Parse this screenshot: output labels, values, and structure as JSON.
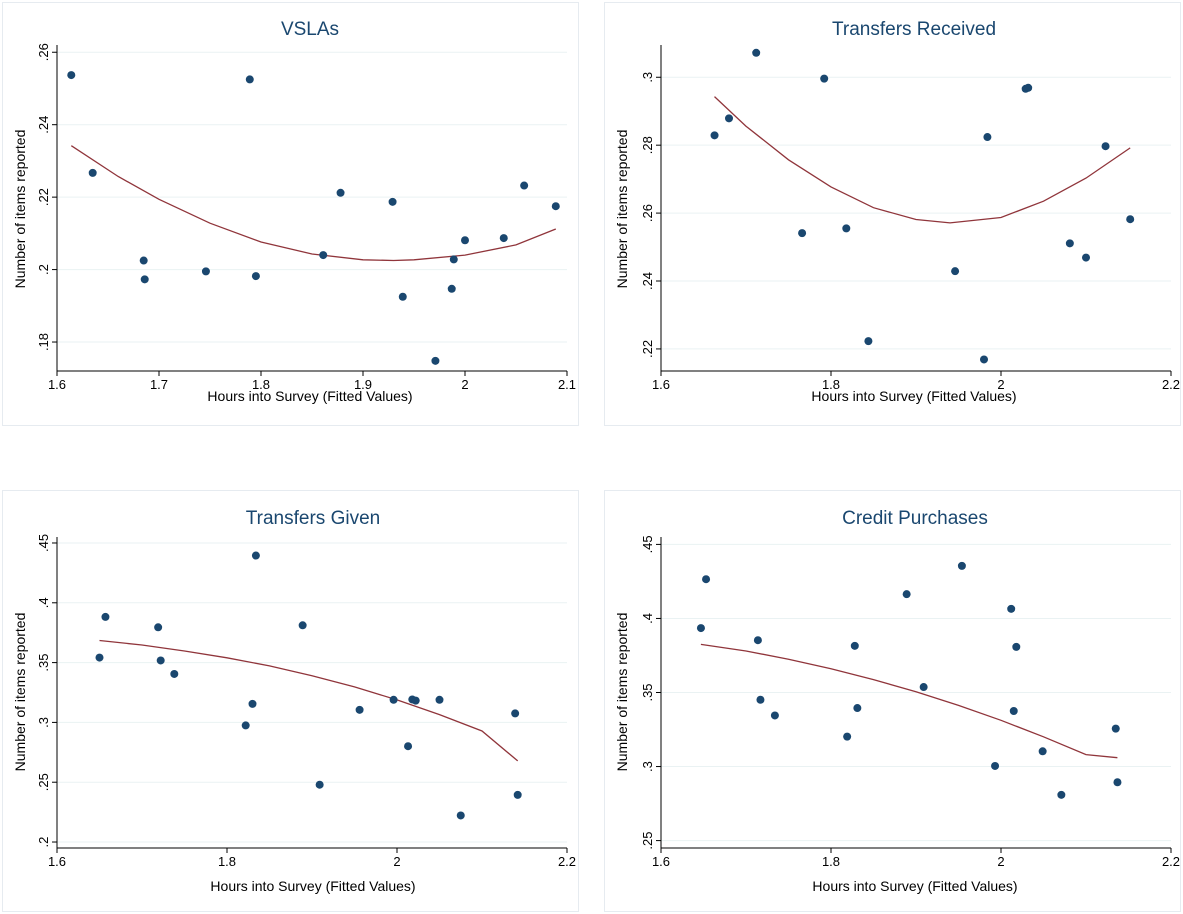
{
  "chart_data": [
    {
      "type": "scatter",
      "title": "VSLAs",
      "xlabel": "Hours into Survey (Fitted Values)",
      "ylabel": "Number of items reported",
      "xlim": [
        1.6,
        2.1
      ],
      "ylim": [
        0.172,
        0.262
      ],
      "xticks": [
        1.6,
        1.7,
        1.8,
        1.9,
        2,
        2.1
      ],
      "xtick_labels": [
        "1.6",
        "1.7",
        "1.8",
        "1.9",
        "2",
        "2.1"
      ],
      "yticks": [
        0.18,
        0.2,
        0.22,
        0.24,
        0.26
      ],
      "ytick_labels": [
        ".18",
        ".2",
        ".22",
        ".24",
        ".26"
      ],
      "grid": true,
      "colors": {
        "points": "#1a476f",
        "fit": "#90353b"
      },
      "series": [
        {
          "type": "scatter",
          "x": [
            1.614,
            1.635,
            1.685,
            1.686,
            1.746,
            1.789,
            1.795,
            1.861,
            1.878,
            1.929,
            1.939,
            1.971,
            1.987,
            1.989,
            2.0,
            2.038,
            2.058,
            2.089
          ],
          "y": [
            0.2537,
            0.2267,
            0.2025,
            0.1973,
            0.1995,
            0.2525,
            0.1982,
            0.204,
            0.2212,
            0.2187,
            0.1925,
            0.1748,
            0.1947,
            0.2028,
            0.2081,
            0.2087,
            0.2232,
            0.2175
          ]
        },
        {
          "type": "line",
          "x": [
            1.614,
            1.66,
            1.7,
            1.75,
            1.8,
            1.85,
            1.9,
            1.93,
            1.95,
            2.0,
            2.05,
            2.089
          ],
          "y": [
            0.2342,
            0.2257,
            0.2194,
            0.2128,
            0.2076,
            0.2043,
            0.2027,
            0.2025,
            0.2027,
            0.204,
            0.2068,
            0.2112
          ]
        }
      ]
    },
    {
      "type": "scatter",
      "title": "Transfers Received",
      "xlabel": "Hours into Survey (Fitted Values)",
      "ylabel": "Number of items reported",
      "xlim": [
        1.6,
        2.2
      ],
      "ylim": [
        0.2135,
        0.3095
      ],
      "xticks": [
        1.6,
        1.8,
        2,
        2.2
      ],
      "xtick_labels": [
        "1.6",
        "1.8",
        "2",
        "2.2"
      ],
      "yticks": [
        0.22,
        0.24,
        0.26,
        0.28,
        0.3
      ],
      "ytick_labels": [
        ".22",
        ".24",
        ".26",
        ".28",
        ".3"
      ],
      "grid": true,
      "colors": {
        "points": "#1a476f",
        "fit": "#90353b"
      },
      "series": [
        {
          "type": "scatter",
          "x": [
            1.663,
            1.68,
            1.712,
            1.766,
            1.792,
            1.818,
            1.844,
            1.946,
            1.98,
            1.984,
            2.029,
            2.032,
            2.081,
            2.1,
            2.123,
            2.152
          ],
          "y": [
            0.2829,
            0.2879,
            0.3072,
            0.2541,
            0.2996,
            0.2555,
            0.2223,
            0.2429,
            0.2169,
            0.2824,
            0.2966,
            0.2969,
            0.2511,
            0.2469,
            0.2797,
            0.2582
          ]
        },
        {
          "type": "line",
          "x": [
            1.663,
            1.7,
            1.75,
            1.8,
            1.85,
            1.9,
            1.94,
            2.0,
            2.05,
            2.1,
            2.152
          ],
          "y": [
            0.2943,
            0.2856,
            0.2757,
            0.2677,
            0.2616,
            0.2581,
            0.2571,
            0.2587,
            0.2635,
            0.2703,
            0.2792
          ]
        }
      ]
    },
    {
      "type": "scatter",
      "title": "Transfers Given",
      "xlabel": "Hours into Survey (Fitted Values)",
      "ylabel": "Number of items reported",
      "xlim": [
        1.6,
        2.2
      ],
      "ylim": [
        0.195,
        0.455
      ],
      "xticks": [
        1.6,
        1.8,
        2,
        2.2
      ],
      "xtick_labels": [
        "1.6",
        "1.8",
        "2",
        "2.2"
      ],
      "yticks": [
        0.2,
        0.25,
        0.3,
        0.35,
        0.4,
        0.45
      ],
      "ytick_labels": [
        ".2",
        ".25",
        ".3",
        ".35",
        ".4",
        ".45"
      ],
      "grid": true,
      "colors": {
        "points": "#1a476f",
        "fit": "#90353b"
      },
      "series": [
        {
          "type": "scatter",
          "x": [
            1.65,
            1.657,
            1.719,
            1.722,
            1.738,
            1.822,
            1.83,
            1.834,
            1.889,
            1.909,
            1.956,
            1.996,
            2.013,
            2.018,
            2.022,
            2.05,
            2.075,
            2.139,
            2.142
          ],
          "y": [
            0.3542,
            0.3882,
            0.3795,
            0.3518,
            0.3405,
            0.2975,
            0.3155,
            0.4395,
            0.3812,
            0.2479,
            0.3105,
            0.3189,
            0.2801,
            0.3192,
            0.3182,
            0.3189,
            0.2222,
            0.3075,
            0.2394
          ]
        },
        {
          "type": "line",
          "x": [
            1.65,
            1.7,
            1.75,
            1.8,
            1.85,
            1.9,
            1.95,
            2.0,
            2.05,
            2.1,
            2.142
          ],
          "y": [
            0.3685,
            0.3647,
            0.3597,
            0.354,
            0.3472,
            0.339,
            0.3297,
            0.3188,
            0.3065,
            0.2928,
            0.2678
          ]
        }
      ]
    },
    {
      "type": "scatter",
      "title": "Credit Purchases",
      "xlabel": "Hours into Survey (Fitted Values)",
      "ylabel": "Number of items reported",
      "xlim": [
        1.6,
        2.2
      ],
      "ylim": [
        0.245,
        0.455
      ],
      "xticks": [
        1.6,
        1.8,
        2,
        2.2
      ],
      "xtick_labels": [
        "1.6",
        "1.8",
        "2",
        "2.2"
      ],
      "yticks": [
        0.25,
        0.3,
        0.35,
        0.4,
        0.45
      ],
      "ytick_labels": [
        ".25",
        ".3",
        ".35",
        ".4",
        ".45"
      ],
      "grid": true,
      "colors": {
        "points": "#1a476f",
        "fit": "#90353b"
      },
      "series": [
        {
          "type": "scatter",
          "x": [
            1.647,
            1.653,
            1.714,
            1.717,
            1.734,
            1.819,
            1.828,
            1.831,
            1.889,
            1.909,
            1.954,
            1.993,
            2.012,
            2.015,
            2.018,
            2.049,
            2.071,
            2.135,
            2.137
          ],
          "y": [
            0.3935,
            0.4265,
            0.3853,
            0.3451,
            0.3345,
            0.3202,
            0.3815,
            0.3395,
            0.4164,
            0.3537,
            0.4355,
            0.3004,
            0.4065,
            0.3375,
            0.3808,
            0.3103,
            0.2809,
            0.3256,
            0.2894
          ]
        },
        {
          "type": "line",
          "x": [
            1.647,
            1.7,
            1.75,
            1.8,
            1.85,
            1.9,
            1.95,
            2.0,
            2.05,
            2.1,
            2.137
          ],
          "y": [
            0.3825,
            0.378,
            0.3725,
            0.366,
            0.3587,
            0.3505,
            0.3413,
            0.3312,
            0.3201,
            0.3081,
            0.306
          ]
        }
      ]
    }
  ]
}
